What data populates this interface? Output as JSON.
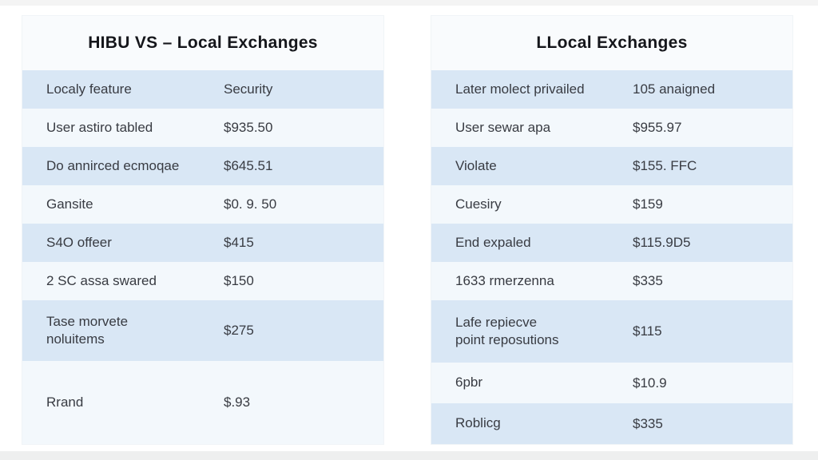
{
  "colors": {
    "row_blue": "#d9e7f5",
    "row_light": "#f3f8fc",
    "table_bg": "#f9fbfd",
    "title_text": "#15161b",
    "cell_text": "#383b42",
    "edge_top": "#f4f4f4",
    "edge_bottom": "#eeefef"
  },
  "left_table": {
    "title": "HIBU VS – Local Exchanges",
    "rows": [
      {
        "label": "Localy feature",
        "value": "Security"
      },
      {
        "label": "User astiro tabled",
        "value": "$935.50"
      },
      {
        "label": "Do annirced ecmoqae",
        "value": "$645.51"
      },
      {
        "label": "Gansite",
        "value": "$0. 9. 50"
      },
      {
        "label": "S4O offeer",
        "value": "$415"
      },
      {
        "label": "2 SC assa swared",
        "value": "$150"
      },
      {
        "label": "Tase morvete",
        "label_line2": "noluitems",
        "value": "$275"
      },
      {
        "label": "Rrand",
        "value": "$.93"
      }
    ]
  },
  "right_table": {
    "title": "LLocal Exchanges",
    "rows": [
      {
        "label": "Later molect privailed",
        "value": "105 anaigned"
      },
      {
        "label": "User sewar apa",
        "value": "$955.97"
      },
      {
        "label": "Violate",
        "value": "$155. FFC"
      },
      {
        "label": "Cuesiry",
        "value": "$159"
      },
      {
        "label": "End expaled",
        "value": "$115.9D5"
      },
      {
        "label": "1633 rmerzenna",
        "value": "$335"
      },
      {
        "label": "Lafe repiecve",
        "label_line2": "point reposutions",
        "value": "$115"
      },
      {
        "label": "6pbr",
        "value": "$10.9"
      },
      {
        "label": "Roblicg",
        "value": "$335"
      }
    ]
  },
  "chart_data": [
    {
      "type": "table",
      "title": "HIBU VS – Local Exchanges",
      "columns": [
        "Localy feature",
        "Security"
      ],
      "rows": [
        [
          "User astiro tabled",
          "$935.50"
        ],
        [
          "Do annirced ecmoqae",
          "$645.51"
        ],
        [
          "Gansite",
          "$0. 9. 50"
        ],
        [
          "S4O offeer",
          "$415"
        ],
        [
          "2 SC assa swared",
          "$150"
        ],
        [
          "Tase morvete noluitems",
          "$275"
        ],
        [
          "Rrand",
          "$.93"
        ]
      ],
      "layout": "two-column comparison table, alternating blue/light row bands, no grid lines"
    },
    {
      "type": "table",
      "title": "LLocal Exchanges",
      "columns": [
        "Later molect privailed",
        "105 anaigned"
      ],
      "rows": [
        [
          "User sewar apa",
          "$955.97"
        ],
        [
          "Violate",
          "$155. FFC"
        ],
        [
          "Cuesiry",
          "$159"
        ],
        [
          "End expaled",
          "$115.9D5"
        ],
        [
          "1633 rmerzenna",
          "$335"
        ],
        [
          "Lafe repiecve point reposutions",
          "$115"
        ],
        [
          "6pbr",
          "$10.9"
        ],
        [
          "Roblicg",
          "$335"
        ]
      ],
      "layout": "two-column comparison table, alternating blue/light row bands, no grid lines"
    }
  ]
}
